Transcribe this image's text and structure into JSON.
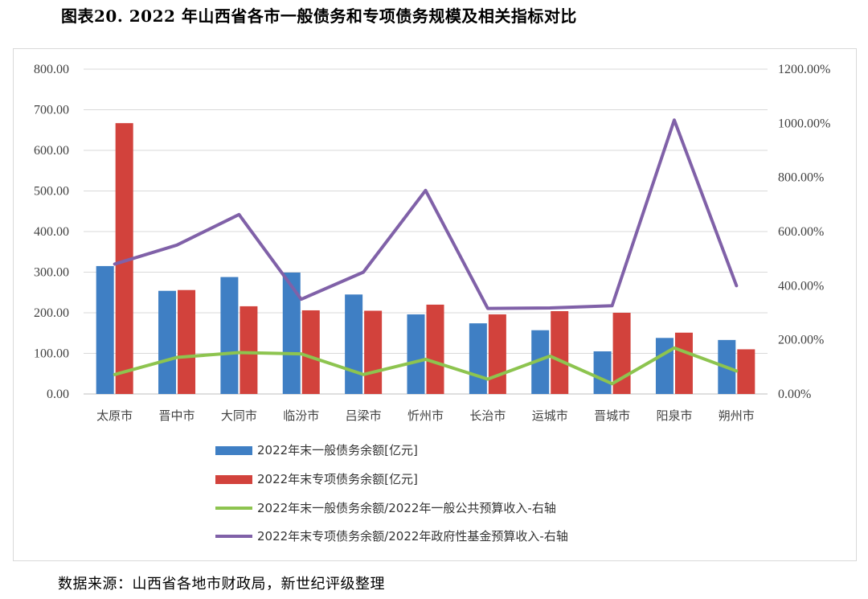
{
  "title": "图表20. 2022 年山西省各市一般债务和专项债务规模及相关指标对比",
  "source": "数据来源：山西省各地市财政局，新世纪评级整理",
  "chart_data": {
    "type": "bar",
    "categories": [
      "太原市",
      "晋中市",
      "大同市",
      "临汾市",
      "吕梁市",
      "忻州市",
      "长治市",
      "运城市",
      "晋城市",
      "阳泉市",
      "朔州市"
    ],
    "y_left": {
      "ticks": [
        "0.00",
        "100.00",
        "200.00",
        "300.00",
        "400.00",
        "500.00",
        "600.00",
        "700.00",
        "800.00"
      ],
      "ylim": [
        0,
        800
      ]
    },
    "y_right": {
      "ticks": [
        "0.00%",
        "200.00%",
        "400.00%",
        "600.00%",
        "800.00%",
        "1000.00%",
        "1200.00%"
      ],
      "ylim": [
        0,
        1200
      ]
    },
    "series": [
      {
        "name": "2022年末一般债务余额[亿元]",
        "kind": "bar",
        "axis": "left",
        "color": "#3f7fc4",
        "values": [
          315,
          254,
          288,
          299,
          245,
          196,
          174,
          157,
          105,
          138,
          133
        ]
      },
      {
        "name": "2022年末专项债务余额[亿元]",
        "kind": "bar",
        "axis": "left",
        "color": "#d2423c",
        "values": [
          667,
          256,
          216,
          206,
          205,
          220,
          196,
          204,
          200,
          151,
          110
        ]
      },
      {
        "name": "2022年末一般债务余额/2022年一般公共预算收入-右轴",
        "kind": "line",
        "axis": "right",
        "color": "#8dc44f",
        "values": [
          72,
          135,
          153,
          148,
          72,
          128,
          55,
          140,
          38,
          170,
          85
        ]
      },
      {
        "name": "2022年末专项债务余额/2022年政府性基金预算收入-右轴",
        "kind": "line",
        "axis": "right",
        "color": "#8061a8",
        "values": [
          480,
          550,
          663,
          350,
          450,
          752,
          316,
          318,
          326,
          1012,
          400
        ]
      }
    ],
    "legend_position": "bottom",
    "grid": true
  }
}
